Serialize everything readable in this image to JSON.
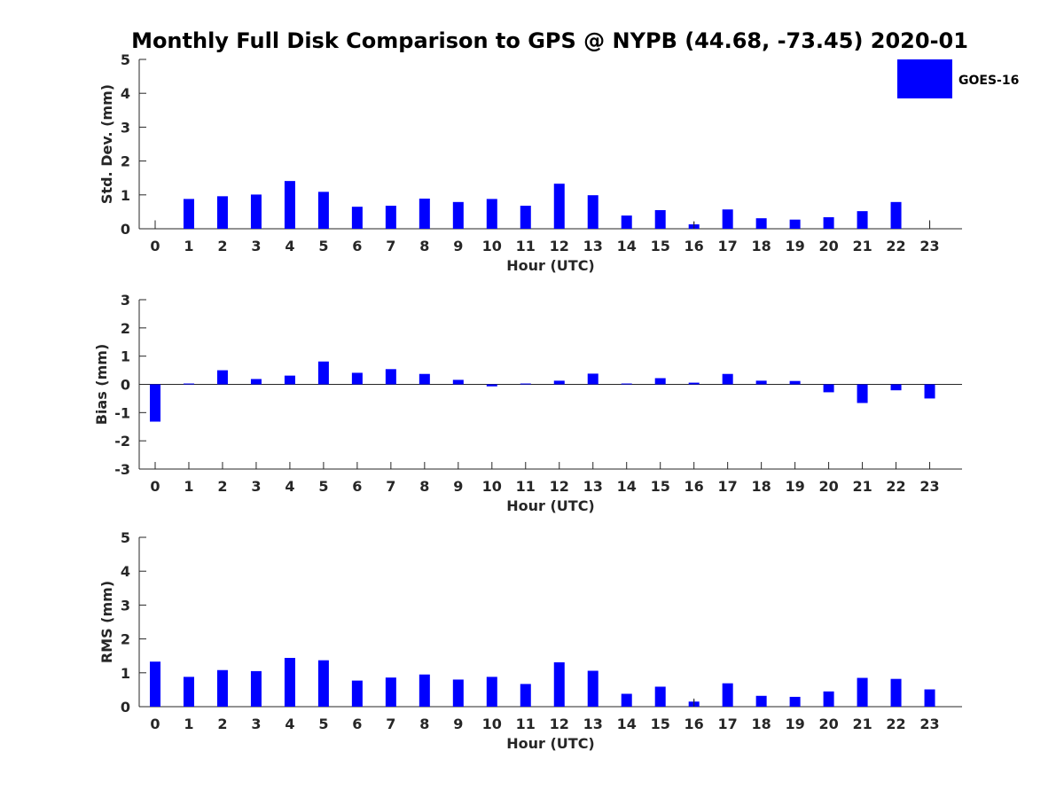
{
  "title": "Monthly Full Disk Comparison to GPS @ NYPB (44.68, -73.45) 2020-01",
  "legend": {
    "label": "GOES-16",
    "color": "#0000ff",
    "placement": "top-right"
  },
  "chart_data": [
    {
      "type": "bar",
      "title": "Monthly Full Disk Comparison to GPS @ NYPB (44.68, -73.45) 2020-01",
      "xlabel": "Hour (UTC)",
      "ylabel": "Std. Dev. (mm)",
      "ylim": [
        0,
        5
      ],
      "yticks": [
        0,
        1,
        2,
        3,
        4,
        5
      ],
      "categories": [
        "0",
        "1",
        "2",
        "3",
        "4",
        "5",
        "6",
        "7",
        "8",
        "9",
        "10",
        "11",
        "12",
        "13",
        "14",
        "15",
        "16",
        "17",
        "18",
        "19",
        "20",
        "21",
        "22",
        "23"
      ],
      "series": [
        {
          "name": "GOES-16",
          "color": "#0000ff",
          "values": [
            null,
            0.88,
            0.96,
            1.01,
            1.41,
            1.09,
            0.65,
            0.68,
            0.89,
            0.79,
            0.88,
            0.68,
            1.33,
            0.99,
            0.39,
            0.55,
            0.13,
            0.57,
            0.31,
            0.27,
            0.34,
            0.52,
            0.79,
            null
          ]
        }
      ],
      "errorbars": [
        0.25,
        null,
        null,
        null,
        null,
        null,
        null,
        null,
        null,
        null,
        null,
        null,
        null,
        null,
        null,
        null,
        0.22,
        null,
        null,
        null,
        null,
        null,
        null,
        0.25
      ],
      "grid": false
    },
    {
      "type": "bar",
      "xlabel": "Hour (UTC)",
      "ylabel": "Bias (mm)",
      "ylim": [
        -3,
        3
      ],
      "yticks": [
        -3,
        -2,
        -1,
        0,
        1,
        2,
        3
      ],
      "categories": [
        "0",
        "1",
        "2",
        "3",
        "4",
        "5",
        "6",
        "7",
        "8",
        "9",
        "10",
        "11",
        "12",
        "13",
        "14",
        "15",
        "16",
        "17",
        "18",
        "19",
        "20",
        "21",
        "22",
        "23"
      ],
      "series": [
        {
          "name": "GOES-16",
          "color": "#0000ff",
          "values": [
            -1.32,
            0.03,
            0.5,
            0.19,
            0.31,
            0.81,
            0.41,
            0.54,
            0.37,
            0.16,
            -0.07,
            0.03,
            0.13,
            0.38,
            0.03,
            0.22,
            0.06,
            0.37,
            0.13,
            0.12,
            -0.28,
            -0.66,
            -0.21,
            -0.5
          ]
        }
      ],
      "grid": false
    },
    {
      "type": "bar",
      "xlabel": "Hour (UTC)",
      "ylabel": "RMS (mm)",
      "ylim": [
        0,
        5
      ],
      "yticks": [
        0,
        1,
        2,
        3,
        4,
        5
      ],
      "categories": [
        "0",
        "1",
        "2",
        "3",
        "4",
        "5",
        "6",
        "7",
        "8",
        "9",
        "10",
        "11",
        "12",
        "13",
        "14",
        "15",
        "16",
        "17",
        "18",
        "19",
        "20",
        "21",
        "22",
        "23"
      ],
      "series": [
        {
          "name": "GOES-16",
          "color": "#0000ff",
          "values": [
            1.33,
            0.88,
            1.08,
            1.05,
            1.44,
            1.37,
            0.77,
            0.86,
            0.95,
            0.8,
            0.88,
            0.67,
            1.31,
            1.06,
            0.38,
            0.59,
            0.15,
            0.69,
            0.32,
            0.29,
            0.45,
            0.85,
            0.82,
            0.51
          ]
        }
      ],
      "errorbars": [
        null,
        null,
        null,
        null,
        null,
        null,
        null,
        null,
        null,
        null,
        null,
        null,
        null,
        null,
        null,
        null,
        0.24,
        null,
        null,
        null,
        null,
        null,
        null,
        null
      ],
      "grid": false
    }
  ]
}
